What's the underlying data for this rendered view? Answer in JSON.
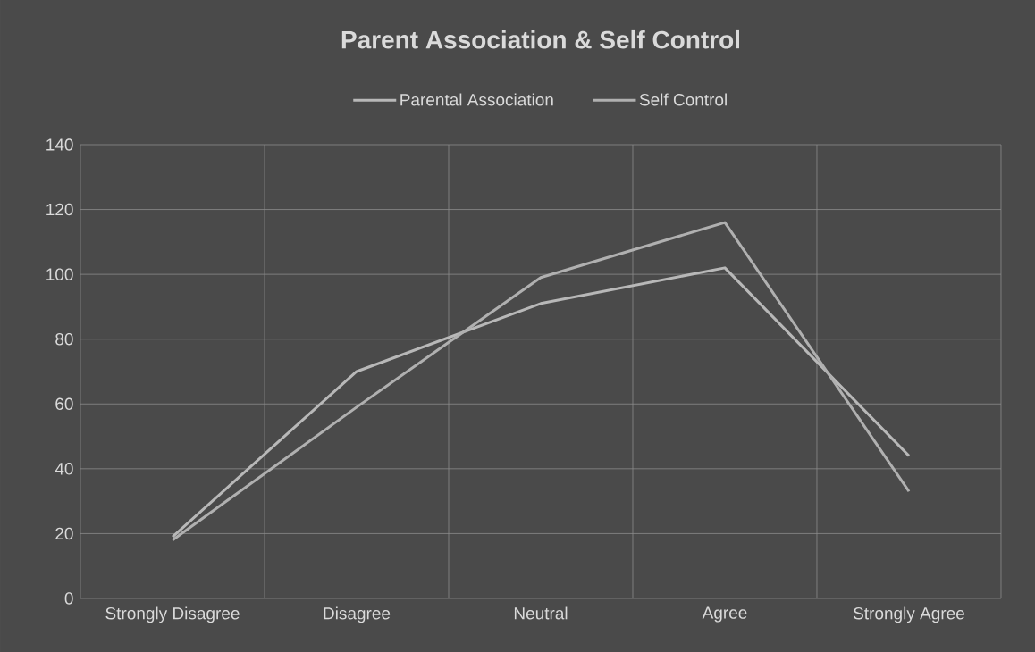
{
  "chart_data": {
    "type": "line",
    "title": "Parent Association & Self Control",
    "categories": [
      "Strongly Disagree",
      "Disagree",
      "Neutral",
      "Agree",
      "Strongly Agree"
    ],
    "series": [
      {
        "name": "Parental Association",
        "color": "#b8b8b8",
        "values": [
          19,
          70,
          91,
          102,
          44
        ]
      },
      {
        "name": "Self Control",
        "color": "#b0b0b0",
        "values": [
          18,
          59,
          99,
          116,
          33
        ]
      }
    ],
    "ylim": [
      0,
      140
    ],
    "yticks": [
      0,
      20,
      40,
      60,
      80,
      100,
      120,
      140
    ],
    "grid": true,
    "legend": "top"
  }
}
